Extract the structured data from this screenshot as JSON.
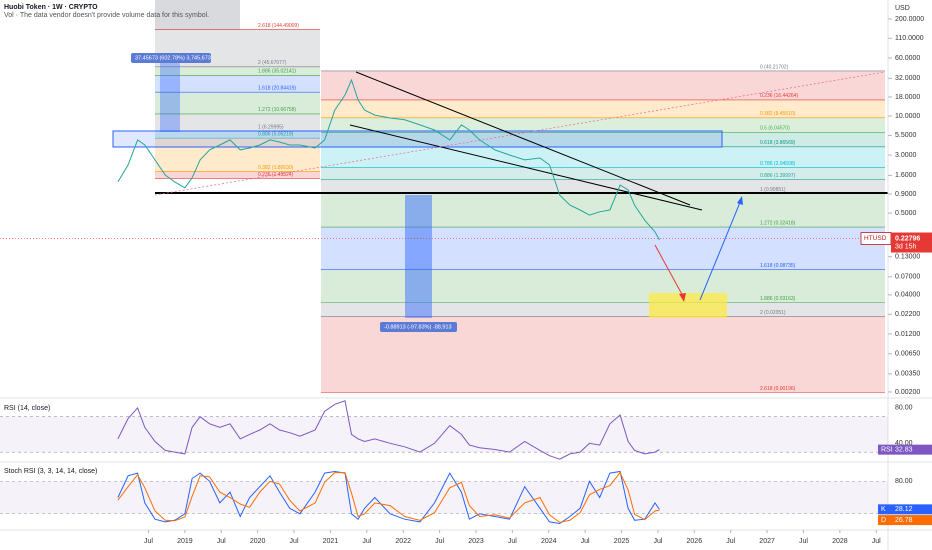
{
  "header": {
    "title": "Huobi Token · 1W · CRYPTO",
    "volume_note": "Vol · The data vendor doesn't provide volume data for this symbol."
  },
  "chart_data": {
    "type": "line",
    "currency": "USD",
    "log_scale": true,
    "color": "#26a69a",
    "x": [
      2018.08,
      2018.22,
      2018.35,
      2018.45,
      2018.59,
      2018.73,
      2018.86,
      2019.0,
      2019.1,
      2019.21,
      2019.34,
      2019.48,
      2019.62,
      2019.76,
      2019.89,
      2020.03,
      2020.17,
      2020.3,
      2020.44,
      2020.58,
      2020.79,
      2020.92,
      2021.06,
      2021.2,
      2021.29,
      2021.38,
      2021.47,
      2021.61,
      2021.82,
      2022.02,
      2022.23,
      2022.43,
      2022.64,
      2022.8,
      2022.91,
      2023.05,
      2023.26,
      2023.46,
      2023.67,
      2023.88,
      2024.01,
      2024.15,
      2024.29,
      2024.43,
      2024.56,
      2024.7,
      2024.84,
      2024.98,
      2025.09,
      2025.18,
      2025.32,
      2025.46,
      2025.52
    ],
    "values": [
      1.31,
      2.21,
      4.78,
      4.09,
      2.58,
      1.62,
      1.31,
      1.09,
      1.48,
      2.58,
      3.51,
      4.09,
      4.78,
      3.51,
      3.73,
      4.09,
      4.78,
      4.49,
      4.09,
      4.09,
      3.73,
      4.78,
      12.0,
      19.1,
      30.4,
      16.4,
      12.0,
      10.3,
      9.4,
      8.9,
      7.6,
      6.5,
      4.78,
      7.6,
      6.5,
      4.78,
      3.51,
      3.0,
      2.58,
      2.74,
      2.21,
      0.87,
      0.64,
      0.55,
      0.47,
      0.52,
      0.55,
      1.19,
      1.02,
      0.64,
      0.4,
      0.28,
      0.22
    ],
    "xlim": [
      2016.46,
      2028.62
    ],
    "ylim": [
      0.00166,
      359
    ],
    "xticks": [
      {
        "value": 2018.5,
        "label": "Jul"
      },
      2019,
      {
        "value": 2019.5,
        "label": "Jul"
      },
      2020,
      {
        "value": 2020.5,
        "label": "Jul"
      },
      2021,
      {
        "value": 2021.5,
        "label": "Jul"
      },
      2022,
      {
        "value": 2022.5,
        "label": "Jul"
      },
      2023,
      {
        "value": 2023.5,
        "label": "Jul"
      },
      2024,
      {
        "value": 2024.5,
        "label": "Jul"
      },
      2025,
      {
        "value": 2025.5,
        "label": "Jul"
      },
      2026,
      {
        "value": 2026.5,
        "label": "Jul"
      },
      2027,
      {
        "value": 2027.5,
        "label": "Jul"
      },
      2028,
      {
        "value": 2028.5,
        "label": "Jul"
      }
    ],
    "yticks": [
      {
        "value": 200,
        "label": "200.0000"
      },
      {
        "value": 110,
        "label": "110.0000"
      },
      {
        "value": 60,
        "label": "60.0000"
      },
      {
        "value": 32,
        "label": "32.0000"
      },
      {
        "value": 18,
        "label": "18.0000"
      },
      {
        "value": 10,
        "label": "10.0000"
      },
      {
        "value": 5.5,
        "label": "5.5000"
      },
      {
        "value": 3,
        "label": "3.0000"
      },
      {
        "value": 1.6,
        "label": "1.6000"
      },
      {
        "value": 0.9,
        "label": "0.9000"
      },
      {
        "value": 0.5,
        "label": "0.5000"
      },
      {
        "value": 0.13,
        "label": "0.13000"
      },
      {
        "value": 0.07,
        "label": "0.07000"
      },
      {
        "value": 0.04,
        "label": "0.04000"
      },
      {
        "value": 0.022,
        "label": "0.02200"
      },
      {
        "value": 0.012,
        "label": "0.01200"
      },
      {
        "value": 0.0065,
        "label": "0.00650"
      },
      {
        "value": 0.0035,
        "label": "0.00350"
      },
      {
        "value": 0.002,
        "label": "0.00200"
      }
    ],
    "last_price": {
      "symbol": "HTUSD",
      "value": 0.22796,
      "countdown": "3d 15h"
    },
    "fib_left": [
      {
        "price": 144.49009,
        "label": "2.618 (144.49009)",
        "color": "#e53935"
      },
      {
        "price": 45.67077,
        "label": "2 (45.67077)",
        "color": "#787b86"
      },
      {
        "price": 35.02141,
        "label": "1.886 (35.02141)",
        "color": "#43a047"
      },
      {
        "price": 20.84419,
        "label": "1.618 (20.84419)",
        "color": "#2962ff"
      },
      {
        "price": 10.66758,
        "label": "1.272 (10.66758)",
        "color": "#43a047"
      },
      {
        "price": 6.29995,
        "label": "1 (6.29995)",
        "color": "#787b86"
      },
      {
        "price": 5.05219,
        "label": "0.886 (5.05219)",
        "color": "#26a69a"
      },
      {
        "price": 1.8063,
        "label": "0.382 (1.80630)",
        "color": "#ff9800"
      },
      {
        "price": 1.45524,
        "label": "0.236 (1.45524)",
        "color": "#e53935"
      }
    ],
    "fib_right": [
      {
        "price": 40.21702,
        "label": "0 (40.21702)",
        "color": "#787b86"
      },
      {
        "price": 16.44264,
        "label": "0.236 (16.44264)",
        "color": "#e53935"
      },
      {
        "price": 9.4551,
        "label": "0.382 (9.45510)",
        "color": "#ff9800"
      },
      {
        "price": 6.0457,
        "label": "0.5 (6.04570)",
        "color": "#4caf50"
      },
      {
        "price": 3.86569,
        "label": "0.618 (3.86569)",
        "color": "#089981"
      },
      {
        "price": 2.04508,
        "label": "0.786 (2.04508)",
        "color": "#00bcd4"
      },
      {
        "price": 1.39997,
        "label": "0.886 (1.39997)",
        "color": "#26a69a"
      },
      {
        "price": 0.90851,
        "label": "1 (0.90851)",
        "color": "#787b86"
      },
      {
        "price": 0.32418,
        "label": "1.272 (0.32418)",
        "color": "#43a047"
      },
      {
        "price": 0.08735,
        "label": "1.618 (0.08735)",
        "color": "#2962ff"
      },
      {
        "price": 0.03163,
        "label": "1.886 (0.03163)",
        "color": "#43a047"
      },
      {
        "price": 0.02051,
        "label": "2 (0.02051)",
        "color": "#787b86"
      },
      {
        "price": 0.00196,
        "label": "2.618 (0.00196)",
        "color": "#e53935"
      }
    ],
    "measure_up": "37.45673 (602.78%) 3,745,673",
    "measure_down": "-0.88913 (-97.83%) -88,913"
  },
  "rsi": {
    "title": "RSI (14, close)",
    "name": "RSI",
    "color": "#7e57c2",
    "values": [
      45,
      68,
      80,
      58,
      42,
      32,
      30,
      28,
      58,
      70,
      62,
      58,
      62,
      45,
      50,
      55,
      62,
      55,
      52,
      48,
      55,
      76,
      84,
      88,
      50,
      45,
      42,
      45,
      40,
      36,
      30,
      40,
      60,
      50,
      38,
      35,
      33,
      30,
      42,
      32,
      26,
      22,
      28,
      30,
      40,
      38,
      62,
      72,
      42,
      32,
      28,
      30,
      32.83
    ],
    "ylim": [
      20,
      88.9
    ],
    "yticks": [
      {
        "value": 80,
        "label": "80.00"
      },
      {
        "value": 40,
        "label": "40.00"
      }
    ],
    "bands": [
      70,
      30
    ],
    "last_value": 32.83
  },
  "stoch": {
    "title": "Stoch RSI (3, 3, 14, 14, close)",
    "k_name": "K",
    "d_name": "D",
    "k_color": "#2962ff",
    "d_color": "#ff6d00",
    "k": [
      50,
      90,
      95,
      40,
      10,
      5,
      8,
      20,
      85,
      95,
      80,
      40,
      60,
      15,
      50,
      70,
      90,
      60,
      30,
      20,
      60,
      95,
      98,
      95,
      20,
      10,
      30,
      50,
      20,
      10,
      5,
      40,
      95,
      60,
      10,
      20,
      15,
      10,
      70,
      30,
      5,
      2,
      15,
      30,
      80,
      50,
      95,
      98,
      30,
      8,
      10,
      40,
      28.12
    ],
    "d": [
      45,
      70,
      92,
      68,
      25,
      8,
      7,
      14,
      52,
      90,
      88,
      60,
      50,
      38,
      32,
      60,
      80,
      75,
      45,
      25,
      40,
      78,
      96,
      96,
      58,
      15,
      20,
      40,
      35,
      15,
      8,
      22,
      68,
      78,
      35,
      15,
      18,
      12,
      40,
      50,
      18,
      4,
      8,
      22,
      55,
      65,
      72,
      96,
      64,
      19,
      9,
      25,
      26.78
    ],
    "ylim": [
      -10,
      110
    ],
    "yticks": [
      {
        "value": 80,
        "label": "80.00"
      }
    ],
    "bands": [
      80,
      20
    ],
    "k_last": 28.12,
    "d_last": 26.78
  }
}
